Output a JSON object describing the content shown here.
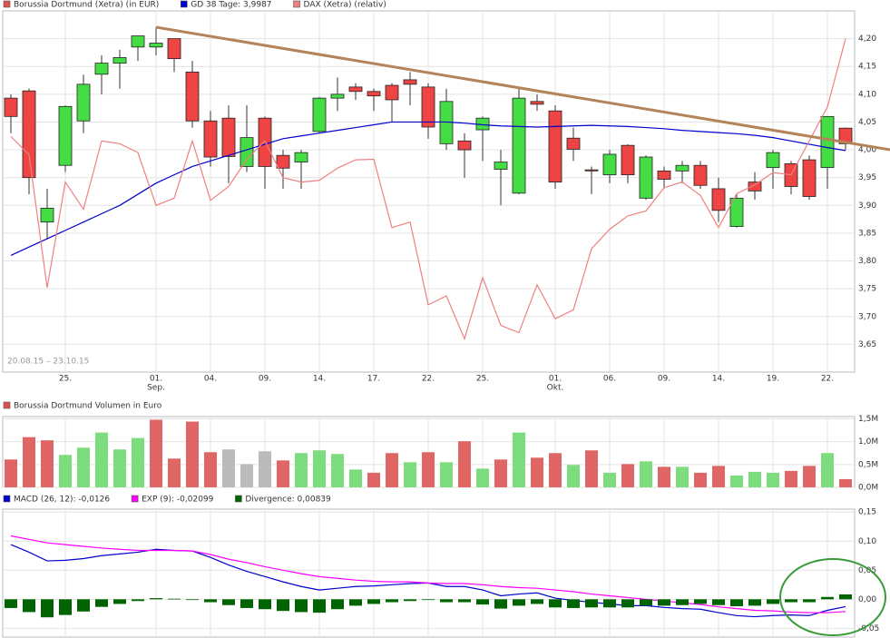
{
  "chart_data": [
    {
      "type": "candlestick",
      "categories": [
        null,
        null,
        null,
        "25.",
        null,
        null,
        null,
        null,
        "01.",
        null,
        null,
        "04.",
        null,
        null,
        "09.",
        null,
        null,
        "14.",
        null,
        null,
        "17.",
        null,
        null,
        "22.",
        null,
        null,
        "25.",
        null,
        null,
        null,
        "01.",
        null,
        null,
        "06.",
        null,
        null,
        "09.",
        null,
        null,
        "14.",
        null,
        null,
        "19.",
        null,
        null,
        "22.",
        null
      ],
      "sublabels": [
        null,
        null,
        null,
        null,
        null,
        null,
        null,
        null,
        "Sep.",
        null,
        null,
        null,
        null,
        null,
        null,
        null,
        null,
        null,
        null,
        null,
        null,
        null,
        null,
        null,
        null,
        null,
        null,
        null,
        null,
        null,
        "Okt.",
        null,
        null,
        null,
        null,
        null,
        null,
        null,
        null,
        null,
        null,
        null,
        null,
        null,
        null,
        null,
        null
      ],
      "range_label": "20.08.15 – 23.10.15",
      "ylim": [
        3.6,
        4.25
      ],
      "yticks": [
        {
          "value": 3.65,
          "label": "3,65"
        },
        {
          "value": 3.7,
          "label": "3,70"
        },
        {
          "value": 3.75,
          "label": "3,75"
        },
        {
          "value": 3.8,
          "label": "3,80"
        },
        {
          "value": 3.85,
          "label": "3,85"
        },
        {
          "value": 3.9,
          "label": "3,90"
        },
        {
          "value": 3.95,
          "label": "3,95"
        },
        {
          "value": 4.0,
          "label": "4,00"
        },
        {
          "value": 4.05,
          "label": "4,05"
        },
        {
          "value": 4.1,
          "label": "4,10"
        },
        {
          "value": 4.15,
          "label": "4,15"
        },
        {
          "value": 4.2,
          "label": "4,20"
        }
      ],
      "grid": true,
      "series": [
        {
          "name": "Borussia Dortmund (Xetra) (in EUR)",
          "color": "#e05050",
          "up_color": "#44dd44",
          "down_color": "#ee4444",
          "open": [
            4.093,
            4.106,
            3.87,
            3.972,
            4.052,
            4.136,
            4.156,
            4.185,
            4.185,
            4.2,
            4.14,
            4.052,
            4.057,
            3.97,
            4.057,
            3.99,
            3.978,
            4.033,
            4.093,
            4.113,
            4.105,
            4.116,
            4.126,
            4.113,
            4.011,
            4.016,
            4.036,
            3.965,
            3.922,
            4.087,
            4.07,
            4.021,
            3.964,
            3.955,
            4.008,
            3.913,
            3.962,
            3.962,
            3.972,
            3.93,
            3.862,
            3.942,
            3.968,
            3.975,
            3.982,
            3.968,
            4.039
          ],
          "high": [
            4.1,
            4.11,
            3.93,
            4.08,
            4.135,
            4.17,
            4.18,
            4.205,
            4.22,
            4.2,
            4.16,
            4.07,
            4.08,
            4.08,
            4.06,
            4.0,
            4.0,
            4.095,
            4.13,
            4.12,
            4.11,
            4.12,
            4.14,
            4.12,
            4.11,
            4.03,
            4.06,
            4.0,
            4.11,
            4.1,
            4.08,
            4.04,
            3.97,
            4.0,
            4.01,
            3.99,
            3.97,
            3.98,
            3.98,
            3.95,
            3.92,
            3.96,
            4.0,
            3.98,
            3.99,
            4.06,
            4.04
          ],
          "low": [
            4.03,
            3.92,
            3.84,
            3.96,
            4.03,
            4.1,
            4.11,
            4.16,
            4.17,
            4.14,
            4.04,
            3.97,
            3.94,
            3.96,
            3.93,
            3.93,
            3.93,
            4.03,
            4.07,
            4.09,
            4.07,
            4.05,
            4.08,
            4.02,
            4.0,
            3.95,
            3.98,
            3.9,
            3.92,
            4.07,
            3.93,
            3.98,
            3.92,
            3.94,
            3.94,
            3.91,
            3.93,
            3.94,
            3.93,
            3.87,
            3.86,
            3.91,
            3.93,
            3.92,
            3.91,
            3.93,
            4.0
          ],
          "close": [
            4.06,
            3.95,
            3.895,
            4.078,
            4.118,
            4.156,
            4.166,
            4.205,
            4.192,
            4.164,
            4.052,
            3.987,
            3.988,
            4.022,
            3.97,
            3.967,
            3.995,
            4.093,
            4.1,
            4.105,
            4.097,
            4.09,
            4.118,
            4.041,
            4.087,
            4.0,
            4.057,
            3.978,
            4.093,
            4.082,
            3.942,
            4.001,
            3.962,
            3.992,
            3.955,
            3.987,
            3.947,
            3.972,
            3.936,
            3.891,
            3.913,
            3.926,
            3.995,
            3.934,
            3.916,
            4.06,
            4.011
          ]
        },
        {
          "name": "GD 38 Tage: 3,9987",
          "color": "#0000cc",
          "style": "line",
          "values": [
            3.81,
            3.825,
            3.84,
            3.855,
            3.87,
            3.885,
            3.9,
            3.92,
            3.94,
            3.955,
            3.97,
            3.98,
            3.99,
            4.0,
            4.01,
            4.02,
            4.025,
            4.03,
            4.035,
            4.04,
            4.045,
            4.05,
            4.05,
            4.05,
            4.05,
            4.048,
            4.045,
            4.043,
            4.042,
            4.041,
            4.042,
            4.043,
            4.044,
            4.043,
            4.042,
            4.04,
            4.038,
            4.035,
            4.033,
            4.031,
            4.029,
            4.026,
            4.022,
            4.016,
            4.01,
            4.004,
            3.9987
          ]
        },
        {
          "name": "DAX (Xetra) (relativ)",
          "color": "#f08080",
          "style": "line",
          "values": [
            4.024,
            3.991,
            3.752,
            3.942,
            3.893,
            4.016,
            4.011,
            3.995,
            3.9,
            3.913,
            4.016,
            3.909,
            3.934,
            3.983,
            4.016,
            3.95,
            3.942,
            3.945,
            3.967,
            3.982,
            3.983,
            3.86,
            3.87,
            3.721,
            3.737,
            3.66,
            3.77,
            3.684,
            3.671,
            3.757,
            3.696,
            3.712,
            3.822,
            3.857,
            3.881,
            3.89,
            3.932,
            3.942,
            3.918,
            3.86,
            3.921,
            3.937,
            3.959,
            3.955,
            4.016,
            4.077,
            4.2
          ]
        }
      ]
    },
    {
      "type": "bar",
      "ylim": [
        0,
        1.55
      ],
      "yticks": [
        {
          "value": 0,
          "label": "0,0M"
        },
        {
          "value": 0.5,
          "label": "0,5M"
        },
        {
          "value": 1,
          "label": "1,0M"
        },
        {
          "value": 1.5,
          "label": "1,5M"
        }
      ],
      "grid": true,
      "series": [
        {
          "name": "Borussia Dortmund Volumen in Euro",
          "color": "#e05050",
          "values": [
            0.61,
            1.1,
            1.03,
            0.71,
            0.87,
            1.2,
            0.83,
            1.08,
            1.48,
            0.63,
            1.44,
            0.77,
            0.83,
            0.51,
            0.79,
            0.59,
            0.75,
            0.81,
            0.73,
            0.39,
            0.32,
            0.75,
            0.55,
            0.77,
            0.55,
            1.01,
            0.41,
            0.61,
            1.2,
            0.65,
            0.75,
            0.49,
            0.81,
            0.32,
            0.51,
            0.57,
            0.45,
            0.45,
            0.32,
            0.47,
            0.26,
            0.34,
            0.32,
            0.36,
            0.47,
            0.75,
            0.18
          ],
          "colors": [
            "#e06666",
            "#e06666",
            "#e06666",
            "#7ddc7d",
            "#7ddc7d",
            "#7ddc7d",
            "#7ddc7d",
            "#7ddc7d",
            "#e06666",
            "#e06666",
            "#e06666",
            "#e06666",
            "#bbbbbb",
            "#bbbbbb",
            "#bbbbbb",
            "#e06666",
            "#7ddc7d",
            "#7ddc7d",
            "#7ddc7d",
            "#7ddc7d",
            "#e06666",
            "#e06666",
            "#7ddc7d",
            "#e06666",
            "#7ddc7d",
            "#e06666",
            "#7ddc7d",
            "#e06666",
            "#7ddc7d",
            "#e06666",
            "#e06666",
            "#7ddc7d",
            "#e06666",
            "#7ddc7d",
            "#e06666",
            "#7ddc7d",
            "#e06666",
            "#7ddc7d",
            "#e06666",
            "#e06666",
            "#7ddc7d",
            "#7ddc7d",
            "#7ddc7d",
            "#e06666",
            "#e06666",
            "#7ddc7d",
            "#e06666"
          ]
        }
      ]
    },
    {
      "type": "line",
      "ylim": [
        -0.065,
        0.155
      ],
      "yticks": [
        {
          "value": -0.05,
          "label": "-0,05"
        },
        {
          "value": 0,
          "label": "0,00"
        },
        {
          "value": 0.05,
          "label": "0,05"
        },
        {
          "value": 0.1,
          "label": "0,10"
        },
        {
          "value": 0.15,
          "label": "0,15"
        }
      ],
      "grid": true,
      "series": [
        {
          "name": "MACD (26, 12): -0,0126",
          "color": "#0000cc",
          "style": "line",
          "values": [
            0.094,
            0.081,
            0.066,
            0.067,
            0.07,
            0.075,
            0.078,
            0.081,
            0.086,
            0.084,
            0.083,
            0.072,
            0.059,
            0.048,
            0.039,
            0.03,
            0.022,
            0.016,
            0.019,
            0.022,
            0.023,
            0.025,
            0.027,
            0.028,
            0.022,
            0.022,
            0.016,
            0.006,
            0.009,
            0.011,
            0.002,
            -0.002,
            -0.005,
            -0.008,
            -0.011,
            -0.011,
            -0.014,
            -0.016,
            -0.017,
            -0.023,
            -0.028,
            -0.03,
            -0.028,
            -0.027,
            -0.028,
            -0.019,
            -0.0126
          ]
        },
        {
          "name": "EXP (9): -0,02099",
          "color": "#ff00ff",
          "style": "line",
          "values": [
            0.109,
            0.103,
            0.097,
            0.094,
            0.091,
            0.088,
            0.086,
            0.084,
            0.084,
            0.084,
            0.083,
            0.077,
            0.069,
            0.063,
            0.056,
            0.05,
            0.044,
            0.039,
            0.036,
            0.033,
            0.031,
            0.03,
            0.03,
            0.028,
            0.027,
            0.027,
            0.025,
            0.022,
            0.02,
            0.019,
            0.016,
            0.013,
            0.009,
            0.006,
            0.003,
            0,
            -0.003,
            -0.006,
            -0.009,
            -0.013,
            -0.016,
            -0.019,
            -0.02,
            -0.022,
            -0.023,
            -0.023,
            -0.02099
          ]
        },
        {
          "name": "Divergence: 0,00839",
          "color": "#006400",
          "style": "bar",
          "values": [
            -0.015,
            -0.022,
            -0.031,
            -0.027,
            -0.021,
            -0.013,
            -0.008,
            -0.003,
            0.002,
            0.001,
            -0.001,
            -0.005,
            -0.01,
            -0.015,
            -0.017,
            -0.02,
            -0.022,
            -0.023,
            -0.017,
            -0.011,
            -0.008,
            -0.005,
            -0.003,
            -0.001,
            -0.005,
            -0.005,
            -0.009,
            -0.016,
            -0.011,
            -0.008,
            -0.014,
            -0.015,
            -0.014,
            -0.014,
            -0.014,
            -0.011,
            -0.011,
            -0.01,
            -0.008,
            -0.01,
            -0.012,
            -0.011,
            -0.008,
            -0.005,
            -0.005,
            0.004,
            0.00839
          ]
        }
      ]
    }
  ]
}
